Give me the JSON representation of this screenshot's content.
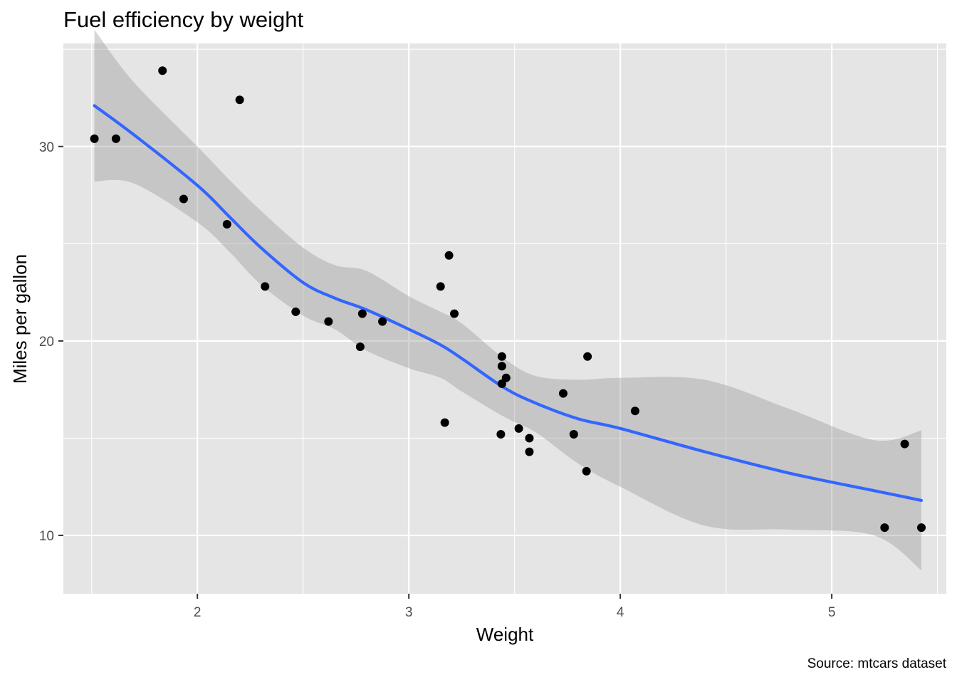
{
  "chart_data": {
    "type": "scatter",
    "title": "Fuel efficiency by weight",
    "xlabel": "Weight",
    "ylabel": "Miles per gallon",
    "caption": "Source: mtcars dataset",
    "xlim": [
      1.3662,
      5.5418
    ],
    "ylim": [
      7.0,
      35.3
    ],
    "x_ticks": [
      2,
      3,
      4,
      5
    ],
    "x_tick_labels": [
      "2",
      "3",
      "4",
      "5"
    ],
    "x_minor_ticks": [
      1.5,
      2.5,
      3.5,
      4.5,
      5.5
    ],
    "y_ticks": [
      10,
      20,
      30
    ],
    "y_tick_labels": [
      "10",
      "20",
      "30"
    ],
    "y_minor_ticks": [
      15,
      25,
      35
    ],
    "grid": true,
    "colors": {
      "panel_background": "#e5e5e5",
      "grid": "#ffffff",
      "points": "#000000",
      "smooth_line": "#3366ff",
      "confidence_band": "#999999"
    },
    "series": [
      {
        "type": "scatter",
        "points": [
          {
            "x": 2.62,
            "y": 21.0
          },
          {
            "x": 2.875,
            "y": 21.0
          },
          {
            "x": 2.32,
            "y": 22.8
          },
          {
            "x": 3.215,
            "y": 21.4
          },
          {
            "x": 3.44,
            "y": 18.7
          },
          {
            "x": 3.46,
            "y": 18.1
          },
          {
            "x": 3.57,
            "y": 14.3
          },
          {
            "x": 3.19,
            "y": 24.4
          },
          {
            "x": 3.15,
            "y": 22.8
          },
          {
            "x": 3.44,
            "y": 19.2
          },
          {
            "x": 3.44,
            "y": 17.8
          },
          {
            "x": 4.07,
            "y": 16.4
          },
          {
            "x": 3.73,
            "y": 17.3
          },
          {
            "x": 3.78,
            "y": 15.2
          },
          {
            "x": 5.25,
            "y": 10.4
          },
          {
            "x": 5.424,
            "y": 10.4
          },
          {
            "x": 5.345,
            "y": 14.7
          },
          {
            "x": 2.2,
            "y": 32.4
          },
          {
            "x": 1.615,
            "y": 30.4
          },
          {
            "x": 1.835,
            "y": 33.9
          },
          {
            "x": 2.465,
            "y": 21.5
          },
          {
            "x": 3.52,
            "y": 15.5
          },
          {
            "x": 3.435,
            "y": 15.2
          },
          {
            "x": 3.84,
            "y": 13.3
          },
          {
            "x": 3.845,
            "y": 19.2
          },
          {
            "x": 1.935,
            "y": 27.3
          },
          {
            "x": 2.14,
            "y": 26.0
          },
          {
            "x": 1.513,
            "y": 30.4
          },
          {
            "x": 3.17,
            "y": 15.8
          },
          {
            "x": 2.77,
            "y": 19.7
          },
          {
            "x": 3.57,
            "y": 15.0
          },
          {
            "x": 2.78,
            "y": 21.4
          }
        ]
      },
      {
        "type": "smooth",
        "x": [
          1.513,
          1.7,
          2.0,
          2.15,
          2.3,
          2.5,
          2.65,
          2.8,
          3.0,
          3.15,
          3.25,
          3.45,
          3.6,
          3.8,
          4.0,
          4.4,
          4.8,
          5.2,
          5.424
        ],
        "y": [
          32.1,
          30.6,
          28.0,
          26.4,
          24.8,
          23.0,
          22.2,
          21.6,
          20.6,
          19.8,
          19.1,
          17.6,
          16.8,
          16.0,
          15.5,
          14.3,
          13.2,
          12.3,
          11.8
        ],
        "lower": [
          28.2,
          28.1,
          26.1,
          24.6,
          22.9,
          21.3,
          20.6,
          19.5,
          18.6,
          18.1,
          17.4,
          16.1,
          15.3,
          13.7,
          12.5,
          10.5,
          10.3,
          10.0,
          8.2
        ],
        "upper": [
          36.0,
          33.3,
          30.0,
          28.3,
          26.7,
          24.8,
          23.9,
          23.6,
          22.3,
          21.5,
          20.9,
          19.1,
          18.2,
          18.0,
          18.1,
          18.0,
          16.5,
          14.9,
          15.4
        ]
      }
    ]
  }
}
